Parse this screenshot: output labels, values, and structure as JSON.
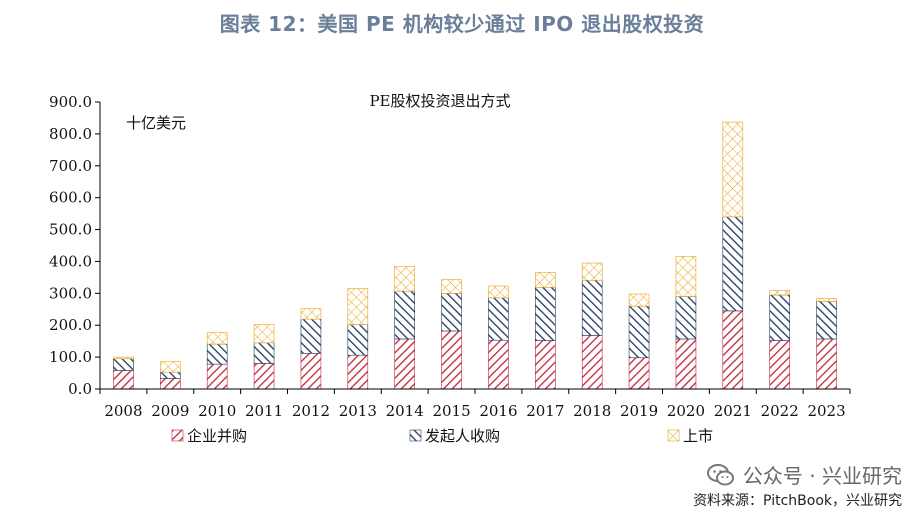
{
  "header": {
    "title": "图表 12：美国 PE 机构较少通过 IPO 退出股权投资"
  },
  "chart_data": {
    "type": "bar",
    "stacked": true,
    "title": "PE股权投资退出方式",
    "unit_label": "十亿美元",
    "categories": [
      "2008",
      "2009",
      "2010",
      "2011",
      "2012",
      "2013",
      "2014",
      "2015",
      "2016",
      "2017",
      "2018",
      "2019",
      "2020",
      "2021",
      "2022",
      "2023"
    ],
    "series": [
      {
        "name": "企业并购",
        "color": "#c0253a",
        "pattern": "diagonal-down",
        "values": [
          58,
          33,
          78,
          80,
          112,
          106,
          157,
          182,
          153,
          152,
          168,
          98,
          157,
          245,
          152,
          157
        ]
      },
      {
        "name": "发起人收购",
        "color": "#223a5e",
        "pattern": "diagonal-up",
        "values": [
          37,
          20,
          63,
          65,
          107,
          96,
          150,
          118,
          133,
          167,
          173,
          162,
          133,
          295,
          143,
          118
        ]
      },
      {
        "name": "上市",
        "color": "#e8a51e",
        "pattern": "crosshatch",
        "values": [
          5,
          33,
          37,
          58,
          33,
          113,
          77,
          43,
          37,
          47,
          54,
          38,
          126,
          297,
          14,
          9
        ]
      }
    ],
    "ylim": [
      0,
      900
    ],
    "yticks": [
      "0.0",
      "100.0",
      "200.0",
      "300.0",
      "400.0",
      "500.0",
      "600.0",
      "700.0",
      "800.0",
      "900.0"
    ],
    "legend_position": "bottom",
    "grid": false
  },
  "watermark": {
    "text": "公众号 · 兴业研究"
  },
  "source": {
    "text": "资料来源：PitchBook，兴业研究"
  }
}
